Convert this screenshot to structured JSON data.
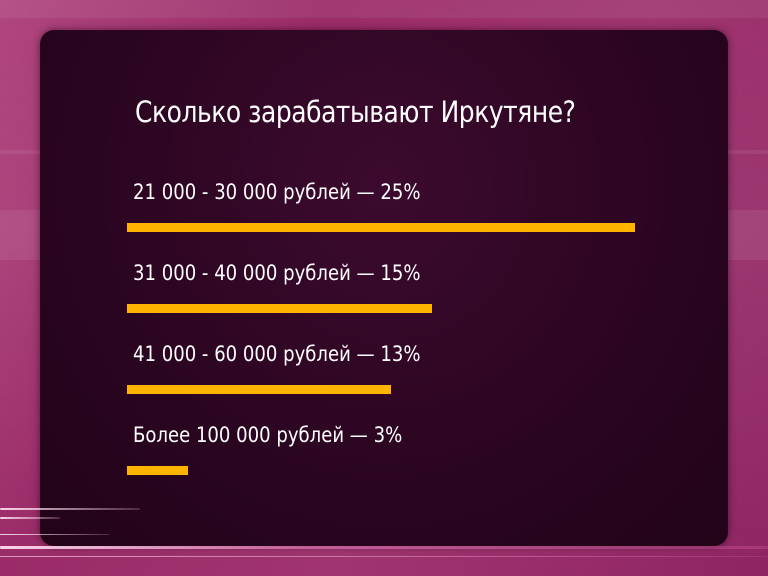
{
  "chart_data": {
    "type": "bar",
    "orientation": "horizontal",
    "title": "Сколько зарабатывают Иркутяне?",
    "categories": [
      "21 000 - 30 000 рублей — 25%",
      "31 000 - 40 000 рублей — 15%",
      "41 000 - 60 000 рублей — 13%",
      "Более 100 000 рублей — 3%"
    ],
    "values": [
      25,
      15,
      13,
      3
    ],
    "unit": "%",
    "bar_color": "#ffb400",
    "grid": false,
    "legend": "none"
  },
  "colors": {
    "background": "#9a2b68",
    "panel": "#2a0520",
    "text": "#ffffff",
    "bar": "#ffb400"
  }
}
